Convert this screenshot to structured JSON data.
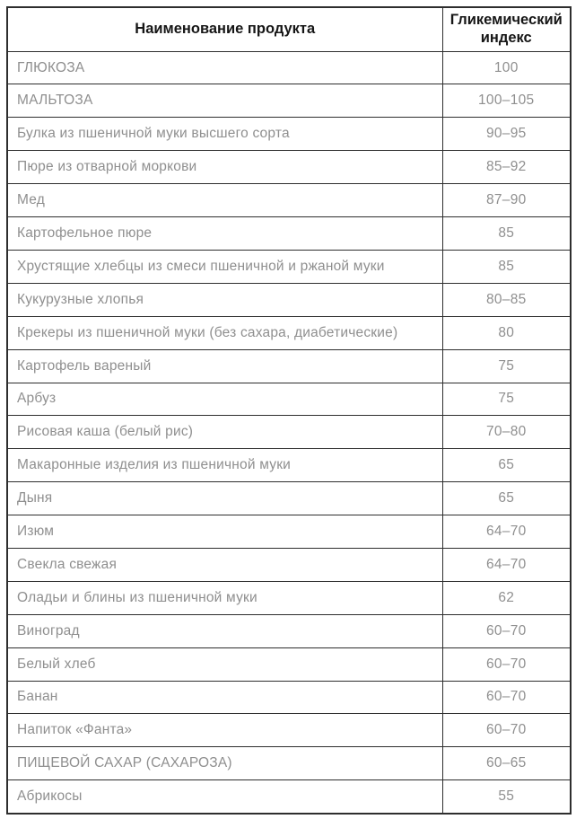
{
  "table": {
    "columns": {
      "product_label": "Наименование продукта",
      "index_label": "Гликемический индекс"
    },
    "rows": [
      {
        "product": "ГЛЮКОЗА",
        "index": "100"
      },
      {
        "product": "МАЛЬТОЗА",
        "index": "100–105"
      },
      {
        "product": "Булка из пшеничной муки высшего сорта",
        "index": "90–95"
      },
      {
        "product": "Пюре из отварной моркови",
        "index": "85–92"
      },
      {
        "product": "Мед",
        "index": "87–90"
      },
      {
        "product": "Картофельное пюре",
        "index": "85"
      },
      {
        "product": "Хрустящие хлебцы из смеси пшеничной и ржаной муки",
        "index": "85"
      },
      {
        "product": "Кукурузные хлопья",
        "index": "80–85"
      },
      {
        "product": "Крекеры из пшеничной муки (без сахара, диабетические)",
        "index": "80"
      },
      {
        "product": "Картофель вареный",
        "index": "75"
      },
      {
        "product": "Арбуз",
        "index": "75"
      },
      {
        "product": "Рисовая каша (белый рис)",
        "index": "70–80"
      },
      {
        "product": "Макаронные изделия из пшеничной муки",
        "index": "65"
      },
      {
        "product": "Дыня",
        "index": "65"
      },
      {
        "product": "Изюм",
        "index": "64–70"
      },
      {
        "product": "Свекла свежая",
        "index": "64–70"
      },
      {
        "product": "Оладьи и блины из пшеничной муки",
        "index": "62"
      },
      {
        "product": "Виноград",
        "index": "60–70"
      },
      {
        "product": "Белый хлеб",
        "index": "60–70"
      },
      {
        "product": "Банан",
        "index": "60–70"
      },
      {
        "product": "Напиток «Фанта»",
        "index": "60–70"
      },
      {
        "product": "ПИЩЕВОЙ САХАР (САХАРОЗА)",
        "index": "60–65"
      },
      {
        "product": "Абрикосы",
        "index": "55"
      }
    ],
    "colors": {
      "border": "#2e2e2e",
      "header_text": "#161616",
      "body_text": "#8f8f8f",
      "background": "#ffffff"
    }
  }
}
